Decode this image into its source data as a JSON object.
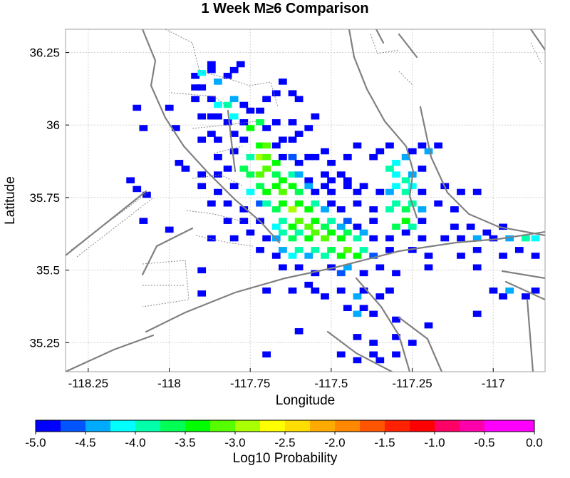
{
  "chart_data": {
    "type": "heatmap",
    "title": "1 Week M≥6 Comparison",
    "xlabel": "Longitude",
    "ylabel": "Latitude",
    "xlim": [
      -118.32,
      -116.84
    ],
    "ylim": [
      35.15,
      36.33
    ],
    "x_ticks": [
      -118.25,
      -118,
      -117.75,
      -117.5,
      -117.25,
      -117
    ],
    "x_tick_labels": [
      "-118.25",
      "-118",
      "-117.75",
      "-117.5",
      "-117.25",
      "-117"
    ],
    "y_ticks": [
      35.25,
      35.5,
      35.75,
      36,
      36.25
    ],
    "y_tick_labels": [
      "35.25",
      "35.5",
      "35.75",
      "36",
      "36.25"
    ],
    "grid": true,
    "colorbar": {
      "label": "Log10 Probability",
      "range": [
        -5.0,
        0.0
      ],
      "ticks": [
        -5.0,
        -4.5,
        -4.0,
        -3.5,
        -3.0,
        -2.5,
        -2.0,
        -1.5,
        -1.0,
        -0.5,
        0.0
      ],
      "tick_labels": [
        "-5.0",
        "-4.5",
        "-4.0",
        "-3.5",
        "-3.0",
        "-2.5",
        "-2.0",
        "-1.5",
        "-1.0",
        "-0.5",
        "0.0"
      ],
      "colors": [
        "#0000ff",
        "#0055ff",
        "#00aaff",
        "#00ffff",
        "#00ffaa",
        "#00ff55",
        "#00ff00",
        "#55ff00",
        "#aaff00",
        "#ffff00",
        "#ffdd00",
        "#ffaa00",
        "#ff8800",
        "#ff5500",
        "#ff2200",
        "#ff0000",
        "#ff0066",
        "#ff00aa",
        "#ff00ff",
        "#ff00ff"
      ]
    },
    "cells": [
      [
        -118.1,
        36.06,
        -5
      ],
      [
        -118.08,
        35.99,
        -5
      ],
      [
        -118.0,
        36.06,
        -5
      ],
      [
        -117.98,
        35.99,
        -5
      ],
      [
        -118.12,
        35.81,
        -5
      ],
      [
        -118.1,
        35.78,
        -5
      ],
      [
        -118.07,
        35.76,
        -5
      ],
      [
        -118.08,
        35.67,
        -5
      ],
      [
        -118.0,
        35.64,
        -5
      ],
      [
        -117.9,
        35.5,
        -5
      ],
      [
        -117.9,
        35.42,
        -5
      ],
      [
        -117.92,
        36.17,
        -5
      ],
      [
        -117.9,
        36.18,
        -4.1
      ],
      [
        -117.87,
        36.19,
        -5
      ],
      [
        -117.87,
        36.21,
        -5
      ],
      [
        -117.92,
        36.13,
        -5
      ],
      [
        -117.9,
        36.13,
        -5
      ],
      [
        -117.85,
        36.15,
        -4.5
      ],
      [
        -117.82,
        36.17,
        -5
      ],
      [
        -117.8,
        36.19,
        -5
      ],
      [
        -117.78,
        36.21,
        -5
      ],
      [
        -117.92,
        36.09,
        -5
      ],
      [
        -117.87,
        36.09,
        -5
      ],
      [
        -117.85,
        36.07,
        -4.2
      ],
      [
        -117.82,
        36.07,
        -3.8
      ],
      [
        -117.8,
        36.09,
        -4.3
      ],
      [
        -117.77,
        36.07,
        -5
      ],
      [
        -117.75,
        36.05,
        -5
      ],
      [
        -117.72,
        36.05,
        -5
      ],
      [
        -117.7,
        36.09,
        -5
      ],
      [
        -117.67,
        36.11,
        -5
      ],
      [
        -117.65,
        36.15,
        -5
      ],
      [
        -117.62,
        36.11,
        -5
      ],
      [
        -117.6,
        36.09,
        -5
      ],
      [
        -117.9,
        36.03,
        -5
      ],
      [
        -117.87,
        36.03,
        -5
      ],
      [
        -117.85,
        36.03,
        -5
      ],
      [
        -117.82,
        36.01,
        -5
      ],
      [
        -117.8,
        36.03,
        -4.2
      ],
      [
        -117.77,
        36.01,
        -5
      ],
      [
        -117.75,
        35.99,
        -3.5
      ],
      [
        -117.72,
        36.01,
        -3.6
      ],
      [
        -117.7,
        35.99,
        -5
      ],
      [
        -117.67,
        36.01,
        -5
      ],
      [
        -117.62,
        36.01,
        -5
      ],
      [
        -117.6,
        35.97,
        -5
      ],
      [
        -117.57,
        35.99,
        -5
      ],
      [
        -117.55,
        36.03,
        -5
      ],
      [
        -117.9,
        35.95,
        -5
      ],
      [
        -117.87,
        35.97,
        -5
      ],
      [
        -117.85,
        35.95,
        -5
      ],
      [
        -117.8,
        35.97,
        -5
      ],
      [
        -117.77,
        35.95,
        -5
      ],
      [
        -117.72,
        35.93,
        -3.4
      ],
      [
        -117.7,
        35.93,
        -3.2
      ],
      [
        -117.67,
        35.93,
        -5
      ],
      [
        -117.65,
        35.95,
        -5
      ],
      [
        -117.62,
        35.95,
        -5
      ],
      [
        -117.85,
        35.89,
        -5
      ],
      [
        -117.8,
        35.91,
        -5
      ],
      [
        -117.75,
        35.89,
        -3.8
      ],
      [
        -117.72,
        35.89,
        -3.0
      ],
      [
        -117.7,
        35.89,
        -3.2
      ],
      [
        -117.67,
        35.87,
        -3.3
      ],
      [
        -117.65,
        35.89,
        -4.8
      ],
      [
        -117.62,
        35.89,
        -4.6
      ],
      [
        -117.6,
        35.87,
        -5
      ],
      [
        -117.57,
        35.89,
        -5
      ],
      [
        -117.55,
        35.89,
        -5
      ],
      [
        -117.52,
        35.91,
        -5
      ],
      [
        -117.5,
        35.87,
        -5
      ],
      [
        -117.45,
        35.89,
        -5
      ],
      [
        -117.42,
        35.93,
        -5
      ],
      [
        -117.37,
        35.89,
        -5
      ],
      [
        -117.35,
        35.91,
        -5
      ],
      [
        -117.32,
        35.93,
        -5
      ],
      [
        -117.3,
        35.87,
        -4.1
      ],
      [
        -117.27,
        35.89,
        -4.4
      ],
      [
        -117.25,
        35.91,
        -4.8
      ],
      [
        -117.22,
        35.93,
        -5
      ],
      [
        -117.2,
        35.91,
        -4.5
      ],
      [
        -117.17,
        35.93,
        -5
      ],
      [
        -117.97,
        35.87,
        -5
      ],
      [
        -117.95,
        35.85,
        -5
      ],
      [
        -117.9,
        35.83,
        -5
      ],
      [
        -117.85,
        35.83,
        -5
      ],
      [
        -117.82,
        35.85,
        -5
      ],
      [
        -117.77,
        35.85,
        -3.7
      ],
      [
        -117.75,
        35.83,
        -3.6
      ],
      [
        -117.72,
        35.83,
        -3.1
      ],
      [
        -117.7,
        35.85,
        -3.2
      ],
      [
        -117.67,
        35.83,
        -3.6
      ],
      [
        -117.65,
        35.81,
        -3.4
      ],
      [
        -117.62,
        35.83,
        -3.8
      ],
      [
        -117.6,
        35.83,
        -4.5
      ],
      [
        -117.57,
        35.81,
        -5
      ],
      [
        -117.52,
        35.83,
        -5
      ],
      [
        -117.5,
        35.81,
        -5
      ],
      [
        -117.47,
        35.83,
        -5
      ],
      [
        -117.45,
        35.81,
        -5
      ],
      [
        -117.32,
        35.85,
        -4.0
      ],
      [
        -117.3,
        35.83,
        -4.2
      ],
      [
        -117.27,
        35.81,
        -3.9
      ],
      [
        -117.25,
        35.83,
        -4.4
      ],
      [
        -117.22,
        35.85,
        -5
      ],
      [
        -117.9,
        35.79,
        -5
      ],
      [
        -117.85,
        35.77,
        -5
      ],
      [
        -117.8,
        35.79,
        -5
      ],
      [
        -117.75,
        35.77,
        -4.2
      ],
      [
        -117.72,
        35.79,
        -3.6
      ],
      [
        -117.7,
        35.77,
        -3.4
      ],
      [
        -117.67,
        35.79,
        -3.5
      ],
      [
        -117.65,
        35.77,
        -3.2
      ],
      [
        -117.62,
        35.79,
        -3.3
      ],
      [
        -117.6,
        35.77,
        -3.7
      ],
      [
        -117.57,
        35.79,
        -4.4
      ],
      [
        -117.55,
        35.77,
        -5
      ],
      [
        -117.52,
        35.79,
        -5
      ],
      [
        -117.5,
        35.77,
        -5
      ],
      [
        -117.45,
        35.79,
        -5
      ],
      [
        -117.42,
        35.77,
        -5
      ],
      [
        -117.4,
        35.79,
        -5
      ],
      [
        -117.35,
        35.77,
        -5
      ],
      [
        -117.32,
        35.77,
        -4.3
      ],
      [
        -117.3,
        35.79,
        -4.1
      ],
      [
        -117.27,
        35.77,
        -3.9
      ],
      [
        -117.25,
        35.79,
        -4.2
      ],
      [
        -117.22,
        35.77,
        -5
      ],
      [
        -117.15,
        35.79,
        -5
      ],
      [
        -117.1,
        35.77,
        -5
      ],
      [
        -117.05,
        35.77,
        -5
      ],
      [
        -117.87,
        35.73,
        -5
      ],
      [
        -117.82,
        35.73,
        -5
      ],
      [
        -117.77,
        35.71,
        -5
      ],
      [
        -117.72,
        35.73,
        -4.6
      ],
      [
        -117.7,
        35.73,
        -4.0
      ],
      [
        -117.67,
        35.71,
        -3.7
      ],
      [
        -117.65,
        35.73,
        -3.4
      ],
      [
        -117.62,
        35.71,
        -3.0
      ],
      [
        -117.6,
        35.73,
        -3.3
      ],
      [
        -117.57,
        35.71,
        -3.5
      ],
      [
        -117.55,
        35.73,
        -4.0
      ],
      [
        -117.52,
        35.71,
        -4.4
      ],
      [
        -117.5,
        35.73,
        -5
      ],
      [
        -117.47,
        35.71,
        -5
      ],
      [
        -117.42,
        35.73,
        -5
      ],
      [
        -117.37,
        35.71,
        -5
      ],
      [
        -117.32,
        35.71,
        -4.0
      ],
      [
        -117.3,
        35.73,
        -3.8
      ],
      [
        -117.27,
        35.71,
        -3.6
      ],
      [
        -117.25,
        35.73,
        -3.8
      ],
      [
        -117.22,
        35.71,
        -4.5
      ],
      [
        -117.17,
        35.73,
        -5
      ],
      [
        -117.12,
        35.71,
        -5
      ],
      [
        -117.82,
        35.67,
        -5
      ],
      [
        -117.77,
        35.67,
        -5
      ],
      [
        -117.72,
        35.67,
        -4.8
      ],
      [
        -117.67,
        35.65,
        -4.2
      ],
      [
        -117.65,
        35.67,
        -3.8
      ],
      [
        -117.62,
        35.65,
        -3.5
      ],
      [
        -117.6,
        35.67,
        -3.2
      ],
      [
        -117.57,
        35.65,
        -3.1
      ],
      [
        -117.55,
        35.67,
        -3.3
      ],
      [
        -117.52,
        35.65,
        -3.6
      ],
      [
        -117.5,
        35.67,
        -3.8
      ],
      [
        -117.47,
        35.65,
        -4.3
      ],
      [
        -117.45,
        35.67,
        -4.6
      ],
      [
        -117.42,
        35.65,
        -5
      ],
      [
        -117.37,
        35.67,
        -5
      ],
      [
        -117.3,
        35.65,
        -3.6
      ],
      [
        -117.27,
        35.67,
        -3.5
      ],
      [
        -117.25,
        35.65,
        -4.0
      ],
      [
        -117.22,
        35.67,
        -5
      ],
      [
        -117.12,
        35.65,
        -5
      ],
      [
        -117.07,
        35.65,
        -5
      ],
      [
        -117.02,
        35.63,
        -5
      ],
      [
        -116.97,
        35.65,
        -5
      ],
      [
        -117.87,
        35.61,
        -5
      ],
      [
        -117.8,
        35.61,
        -5
      ],
      [
        -117.75,
        35.63,
        -5
      ],
      [
        -117.7,
        35.61,
        -5
      ],
      [
        -117.67,
        35.61,
        -4.5
      ],
      [
        -117.65,
        35.63,
        -4.0
      ],
      [
        -117.62,
        35.61,
        -3.6
      ],
      [
        -117.6,
        35.63,
        -3.8
      ],
      [
        -117.57,
        35.61,
        -3.4
      ],
      [
        -117.55,
        35.63,
        -3.1
      ],
      [
        -117.52,
        35.61,
        -3.2
      ],
      [
        -117.5,
        35.63,
        -3.3
      ],
      [
        -117.47,
        35.61,
        -3.4
      ],
      [
        -117.45,
        35.63,
        -3.6
      ],
      [
        -117.42,
        35.61,
        -4.0
      ],
      [
        -117.4,
        35.63,
        -4.5
      ],
      [
        -117.37,
        35.61,
        -5
      ],
      [
        -117.32,
        35.61,
        -4.8
      ],
      [
        -117.27,
        35.63,
        -5
      ],
      [
        -117.22,
        35.61,
        -5
      ],
      [
        -117.15,
        35.61,
        -5
      ],
      [
        -117.1,
        35.61,
        -5
      ],
      [
        -117.05,
        35.61,
        -4.3
      ],
      [
        -117.0,
        35.61,
        -5
      ],
      [
        -116.95,
        35.61,
        -4.4
      ],
      [
        -116.9,
        35.61,
        -3.9
      ],
      [
        -116.87,
        35.61,
        -4.2
      ],
      [
        -117.72,
        35.57,
        -5
      ],
      [
        -117.67,
        35.55,
        -5
      ],
      [
        -117.65,
        35.57,
        -4.5
      ],
      [
        -117.62,
        35.55,
        -4.2
      ],
      [
        -117.6,
        35.57,
        -4.0
      ],
      [
        -117.57,
        35.55,
        -4.3
      ],
      [
        -117.55,
        35.57,
        -3.8
      ],
      [
        -117.52,
        35.55,
        -4.0
      ],
      [
        -117.5,
        35.57,
        -3.6
      ],
      [
        -117.47,
        35.55,
        -3.4
      ],
      [
        -117.45,
        35.57,
        -3.2
      ],
      [
        -117.42,
        35.55,
        -3.3
      ],
      [
        -117.4,
        35.57,
        -3.9
      ],
      [
        -117.37,
        35.55,
        -4.6
      ],
      [
        -117.32,
        35.57,
        -5
      ],
      [
        -117.25,
        35.57,
        -5
      ],
      [
        -117.2,
        35.55,
        -5
      ],
      [
        -117.1,
        35.55,
        -5
      ],
      [
        -117.05,
        35.57,
        -5
      ],
      [
        -116.97,
        35.55,
        -5
      ],
      [
        -116.92,
        35.57,
        -5
      ],
      [
        -116.87,
        35.55,
        -5
      ],
      [
        -117.65,
        35.51,
        -5
      ],
      [
        -117.6,
        35.51,
        -5
      ],
      [
        -117.55,
        35.49,
        -4.8
      ],
      [
        -117.5,
        35.51,
        -5
      ],
      [
        -117.47,
        35.49,
        -4.7
      ],
      [
        -117.45,
        35.51,
        -4.4
      ],
      [
        -117.4,
        35.49,
        -5
      ],
      [
        -117.35,
        35.51,
        -5
      ],
      [
        -117.3,
        35.49,
        -5
      ],
      [
        -117.2,
        35.51,
        -5
      ],
      [
        -117.05,
        35.51,
        -5
      ],
      [
        -117.7,
        35.43,
        -5
      ],
      [
        -117.62,
        35.43,
        -5
      ],
      [
        -117.57,
        35.45,
        -5
      ],
      [
        -117.55,
        35.43,
        -4.8
      ],
      [
        -117.52,
        35.41,
        -5
      ],
      [
        -117.47,
        35.43,
        -5
      ],
      [
        -117.42,
        35.41,
        -4.3
      ],
      [
        -117.4,
        35.43,
        -5
      ],
      [
        -117.35,
        35.41,
        -5
      ],
      [
        -117.32,
        35.43,
        -5
      ],
      [
        -117.0,
        35.43,
        -5
      ],
      [
        -116.97,
        35.41,
        -5
      ],
      [
        -116.95,
        35.43,
        -4.3
      ],
      [
        -116.9,
        35.41,
        -5
      ],
      [
        -116.87,
        35.43,
        -5
      ],
      [
        -117.45,
        35.37,
        -5
      ],
      [
        -117.42,
        35.35,
        -4.4
      ],
      [
        -117.4,
        35.37,
        -5
      ],
      [
        -117.37,
        35.35,
        -5
      ],
      [
        -117.3,
        35.33,
        -5
      ],
      [
        -117.2,
        35.31,
        -5
      ],
      [
        -117.05,
        35.35,
        -5
      ],
      [
        -117.42,
        35.27,
        -5
      ],
      [
        -117.37,
        35.25,
        -5
      ],
      [
        -117.3,
        35.27,
        -5
      ],
      [
        -117.25,
        35.25,
        -5
      ],
      [
        -117.7,
        35.21,
        -5
      ],
      [
        -117.47,
        35.21,
        -5
      ],
      [
        -117.42,
        35.19,
        -5
      ],
      [
        -117.37,
        35.21,
        -5
      ],
      [
        -117.35,
        35.19,
        -5
      ],
      [
        -117.3,
        35.21,
        -5
      ],
      [
        -117.6,
        35.29,
        -5
      ]
    ]
  }
}
